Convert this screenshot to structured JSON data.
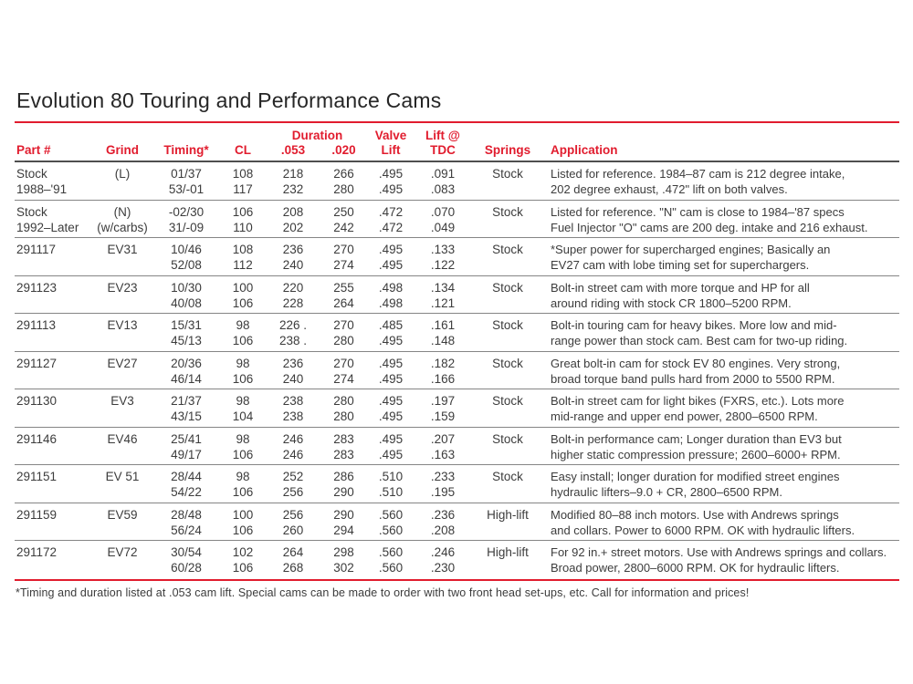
{
  "colors": {
    "accent_red": "#e11c2e",
    "header_underline": "#4f4f4f",
    "row_line_gray": "#858585",
    "body_text": "#3c3c3c"
  },
  "title": "Evolution 80 Touring and Performance Cams",
  "footnote": "*Timing and duration listed at .053 cam lift. Special cams can be made to order with two front head set-ups, etc. Call for information and prices!",
  "table": {
    "header": {
      "duration_group": "Duration",
      "part": "Part #",
      "grind": "Grind",
      "timing": "Timing*",
      "cl": "CL",
      "d053": ".053",
      "d020": ".020",
      "valve_top": "Valve",
      "valve_bottom": "Lift",
      "tdc_top": "Lift @",
      "tdc_bottom": "TDC",
      "springs": "Springs",
      "application": "Application"
    },
    "rows": [
      {
        "part": [
          "Stock",
          "1988–'91"
        ],
        "grind": [
          "(L)",
          ""
        ],
        "timing": [
          "01/37",
          "53/-01"
        ],
        "cl": [
          "108",
          "117"
        ],
        "d053": [
          "218",
          "232"
        ],
        "d020": [
          "266",
          "280"
        ],
        "lift": [
          ".495",
          ".495"
        ],
        "tdc": [
          ".091",
          ".083"
        ],
        "springs": "Stock",
        "app": [
          "Listed for reference. 1984–87 cam is 212 degree intake,",
          "202 degree exhaust, .472\" lift on both valves."
        ]
      },
      {
        "part": [
          "Stock",
          "1992–Later"
        ],
        "grind": [
          "(N)",
          "(w/carbs)"
        ],
        "timing": [
          "-02/30",
          "31/-09"
        ],
        "cl": [
          "106",
          "110"
        ],
        "d053": [
          "208",
          "202"
        ],
        "d020": [
          "250",
          "242"
        ],
        "lift": [
          ".472",
          ".472"
        ],
        "tdc": [
          ".070",
          ".049"
        ],
        "springs": "Stock",
        "app": [
          "Listed for reference. \"N\" cam is close to 1984–'87 specs",
          "Fuel Injector \"O\" cams are 200 deg. intake and 216 exhaust."
        ]
      },
      {
        "part": [
          "291117",
          ""
        ],
        "grind": [
          "EV31",
          ""
        ],
        "timing": [
          "10/46",
          "52/08"
        ],
        "cl": [
          "108",
          "112"
        ],
        "d053": [
          "236",
          "240"
        ],
        "d020": [
          "270",
          "274"
        ],
        "lift": [
          ".495",
          ".495"
        ],
        "tdc": [
          ".133",
          ".122"
        ],
        "springs": "Stock",
        "app": [
          "*Super power for supercharged engines; Basically an",
          "EV27 cam with lobe timing set for superchargers."
        ]
      },
      {
        "part": [
          "291123",
          ""
        ],
        "grind": [
          "EV23",
          ""
        ],
        "timing": [
          "10/30",
          "40/08"
        ],
        "cl": [
          "100",
          "106"
        ],
        "d053": [
          "220",
          "228"
        ],
        "d020": [
          "255",
          "264"
        ],
        "lift": [
          ".498",
          ".498"
        ],
        "tdc": [
          ".134",
          ".121"
        ],
        "springs": "Stock",
        "app": [
          "Bolt-in street cam with more torque and HP for all",
          "around riding with stock CR 1800–5200 RPM."
        ]
      },
      {
        "part": [
          "291113",
          ""
        ],
        "grind": [
          "EV13",
          ""
        ],
        "timing": [
          "15/31",
          "45/13"
        ],
        "cl": [
          "98",
          "106"
        ],
        "d053": [
          "226 .",
          "238 ."
        ],
        "d020": [
          "270",
          "280"
        ],
        "lift": [
          ".485",
          ".495"
        ],
        "tdc": [
          ".161",
          ".148"
        ],
        "springs": "Stock",
        "app": [
          "Bolt-in touring cam for heavy bikes. More low and mid-",
          "range power than stock cam. Best cam for two-up riding."
        ]
      },
      {
        "part": [
          "291127",
          ""
        ],
        "grind": [
          "EV27",
          ""
        ],
        "timing": [
          "20/36",
          "46/14"
        ],
        "cl": [
          "98",
          "106"
        ],
        "d053": [
          "236",
          "240"
        ],
        "d020": [
          "270",
          "274"
        ],
        "lift": [
          ".495",
          ".495"
        ],
        "tdc": [
          ".182",
          ".166"
        ],
        "springs": "Stock",
        "app": [
          "Great bolt-in cam for stock EV 80 engines. Very strong,",
          "broad torque band pulls hard from 2000 to 5500 RPM."
        ]
      },
      {
        "part": [
          "291130",
          ""
        ],
        "grind": [
          "EV3",
          ""
        ],
        "timing": [
          "21/37",
          "43/15"
        ],
        "cl": [
          "98",
          "104"
        ],
        "d053": [
          "238",
          "238"
        ],
        "d020": [
          "280",
          "280"
        ],
        "lift": [
          ".495",
          ".495"
        ],
        "tdc": [
          ".197",
          ".159"
        ],
        "springs": "Stock",
        "app": [
          "Bolt-in street cam for light bikes (FXRS, etc.). Lots more",
          "mid-range and upper end power, 2800–6500 RPM."
        ]
      },
      {
        "part": [
          "291146",
          ""
        ],
        "grind": [
          "EV46",
          ""
        ],
        "timing": [
          "25/41",
          "49/17"
        ],
        "cl": [
          "98",
          "106"
        ],
        "d053": [
          "246",
          "246"
        ],
        "d020": [
          "283",
          "283"
        ],
        "lift": [
          ".495",
          ".495"
        ],
        "tdc": [
          ".207",
          ".163"
        ],
        "springs": "Stock",
        "app": [
          "Bolt-in performance cam; Longer duration than EV3 but",
          "higher static compression pressure; 2600–6000+ RPM."
        ]
      },
      {
        "part": [
          "291151",
          ""
        ],
        "grind": [
          "EV 51",
          ""
        ],
        "timing": [
          "28/44",
          "54/22"
        ],
        "cl": [
          "98",
          "106"
        ],
        "d053": [
          "252",
          "256"
        ],
        "d020": [
          "286",
          "290"
        ],
        "lift": [
          ".510",
          ".510"
        ],
        "tdc": [
          ".233",
          ".195"
        ],
        "springs": "Stock",
        "app": [
          "Easy install; longer duration for modified street engines",
          "hydraulic lifters–9.0 + CR, 2800–6500 RPM."
        ]
      },
      {
        "part": [
          "291159",
          ""
        ],
        "grind": [
          "EV59",
          ""
        ],
        "timing": [
          "28/48",
          "56/24"
        ],
        "cl": [
          "100",
          "106"
        ],
        "d053": [
          "256",
          "260"
        ],
        "d020": [
          "290",
          "294"
        ],
        "lift": [
          ".560",
          ".560"
        ],
        "tdc": [
          ".236",
          ".208"
        ],
        "springs": "High-lift",
        "app": [
          "Modified 80–88 inch motors. Use with Andrews springs",
          "and collars. Power to 6000 RPM. OK with hydraulic lifters."
        ]
      },
      {
        "part": [
          "291172",
          ""
        ],
        "grind": [
          "EV72",
          ""
        ],
        "timing": [
          "30/54",
          "60/28"
        ],
        "cl": [
          "102",
          "106"
        ],
        "d053": [
          "264",
          "268"
        ],
        "d020": [
          "298",
          "302"
        ],
        "lift": [
          ".560",
          ".560"
        ],
        "tdc": [
          ".246",
          ".230"
        ],
        "springs": "High-lift",
        "app": [
          "For 92 in.+ street motors. Use with Andrews springs and collars.",
          "Broad power, 2800–6000 RPM. OK for hydraulic lifters."
        ]
      }
    ]
  }
}
